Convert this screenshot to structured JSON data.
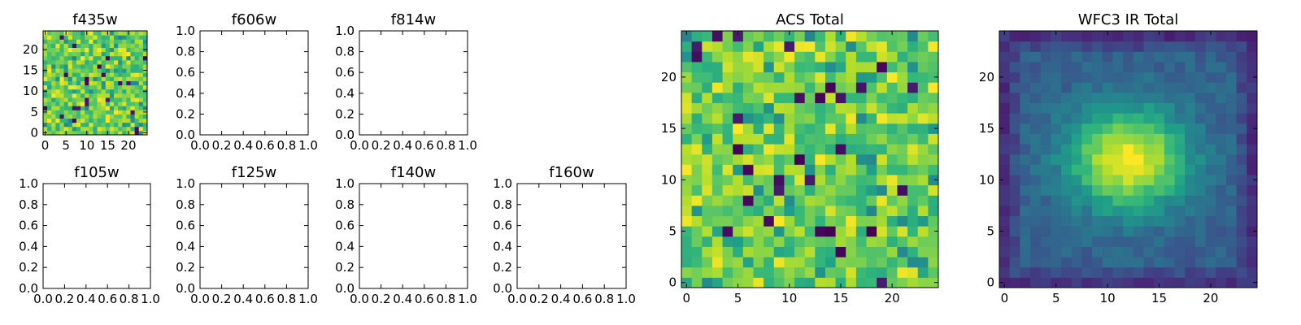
{
  "chart_data": [
    {
      "name": "f435w",
      "type": "heatmap",
      "title": "f435w",
      "xlim": [
        -0.5,
        24.5
      ],
      "ylim": [
        -0.5,
        24.5
      ],
      "xticks": [
        0,
        5,
        10,
        15,
        20
      ],
      "yticks": [
        0,
        5,
        10,
        15,
        20
      ],
      "grid": false,
      "colormap": "viridis",
      "pattern": "noise"
    },
    {
      "name": "f606w",
      "type": "empty",
      "title": "f606w",
      "xlim": [
        0,
        1
      ],
      "ylim": [
        0,
        1
      ],
      "xticks": [
        "0.0",
        "0.2",
        "0.4",
        "0.6",
        "0.8",
        "1.0"
      ],
      "yticks": [
        "0.0",
        "0.2",
        "0.4",
        "0.6",
        "0.8",
        "1.0"
      ]
    },
    {
      "name": "f814w",
      "type": "empty",
      "title": "f814w",
      "xlim": [
        0,
        1
      ],
      "ylim": [
        0,
        1
      ],
      "xticks": [
        "0.0",
        "0.2",
        "0.4",
        "0.6",
        "0.8",
        "1.0"
      ],
      "yticks": [
        "0.0",
        "0.2",
        "0.4",
        "0.6",
        "0.8",
        "1.0"
      ]
    },
    {
      "name": "f105w",
      "type": "empty",
      "title": "f105w",
      "xlim": [
        0,
        1
      ],
      "ylim": [
        0,
        1
      ],
      "xticks": [
        "0.0",
        "0.2",
        "0.4",
        "0.6",
        "0.8",
        "1.0"
      ],
      "yticks": [
        "0.0",
        "0.2",
        "0.4",
        "0.6",
        "0.8",
        "1.0"
      ]
    },
    {
      "name": "f125w",
      "type": "empty",
      "title": "f125w",
      "xlim": [
        0,
        1
      ],
      "ylim": [
        0,
        1
      ],
      "xticks": [
        "0.0",
        "0.2",
        "0.4",
        "0.6",
        "0.8",
        "1.0"
      ],
      "yticks": [
        "0.0",
        "0.2",
        "0.4",
        "0.6",
        "0.8",
        "1.0"
      ]
    },
    {
      "name": "f140w",
      "type": "empty",
      "title": "f140w",
      "xlim": [
        0,
        1
      ],
      "ylim": [
        0,
        1
      ],
      "xticks": [
        "0.0",
        "0.2",
        "0.4",
        "0.6",
        "0.8",
        "1.0"
      ],
      "yticks": [
        "0.0",
        "0.2",
        "0.4",
        "0.6",
        "0.8",
        "1.0"
      ]
    },
    {
      "name": "f160w",
      "type": "empty",
      "title": "f160w",
      "xlim": [
        0,
        1
      ],
      "ylim": [
        0,
        1
      ],
      "xticks": [
        "0.0",
        "0.2",
        "0.4",
        "0.6",
        "0.8",
        "1.0"
      ],
      "yticks": [
        "0.0",
        "0.2",
        "0.4",
        "0.6",
        "0.8",
        "1.0"
      ]
    },
    {
      "name": "acs-total",
      "type": "heatmap",
      "title": "ACS Total",
      "xlim": [
        -0.5,
        24.5
      ],
      "ylim": [
        -0.5,
        24.5
      ],
      "xticks": [
        0,
        5,
        10,
        15,
        20
      ],
      "yticks": [
        0,
        5,
        10,
        15,
        20
      ],
      "grid": false,
      "colormap": "viridis",
      "pattern": "noise"
    },
    {
      "name": "wfc3-ir-total",
      "type": "heatmap",
      "title": "WFC3 IR Total",
      "xlim": [
        -0.5,
        24.5
      ],
      "ylim": [
        -0.5,
        24.5
      ],
      "xticks": [
        0,
        5,
        10,
        15,
        20
      ],
      "yticks": [
        0,
        5,
        10,
        15,
        20
      ],
      "grid": false,
      "colormap": "viridis",
      "pattern": "central-blob",
      "peak_at": [
        12,
        12
      ]
    }
  ]
}
